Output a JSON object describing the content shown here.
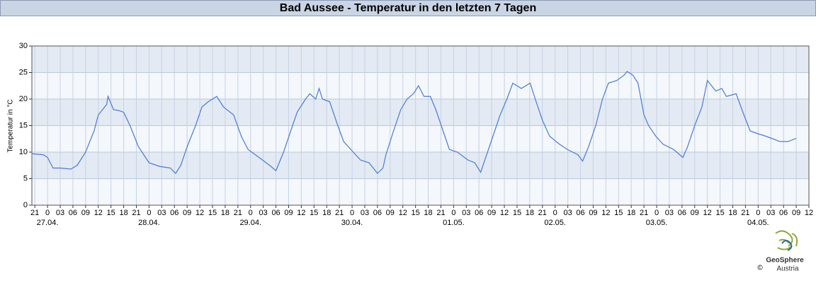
{
  "chart_data": {
    "type": "line",
    "title": "Bad Aussee - Temperatur in den letzten 7 Tagen",
    "y_label": "Temperatur in °C",
    "color": "#4a7bd6",
    "x": [
      -3.7,
      -1,
      0,
      1.3,
      3,
      5.5,
      7,
      9,
      11,
      12,
      14,
      14.3,
      15.6,
      17,
      18,
      19.5,
      21.5,
      24,
      26.5,
      29,
      30.3,
      31.5,
      33,
      35,
      36.5,
      38,
      40,
      41.6,
      44,
      45.8,
      47.4,
      50,
      52.5,
      54,
      55.8,
      57.5,
      59,
      61,
      62,
      63.4,
      64.2,
      65,
      66.7,
      68.4,
      70,
      71.7,
      74,
      76,
      78,
      79.3,
      80,
      81.8,
      83.5,
      85,
      86.5,
      87.7,
      89,
      90.5,
      91.8,
      93.5,
      95,
      96.9,
      99.4,
      101,
      102.4,
      103.6,
      105.3,
      107,
      108.6,
      110,
      112,
      114.1,
      115.3,
      117,
      118.7,
      121,
      122.9,
      125.4,
      126.5,
      127.9,
      129.6,
      131.2,
      132.6,
      134.6,
      136.3,
      137,
      138.4,
      139.6,
      141,
      142.1,
      143.8,
      145.5,
      148,
      150.2,
      151.3,
      153,
      154.7,
      156,
      158,
      159.4,
      160.5,
      162.8,
      164.4,
      166.1,
      167.8,
      169.8,
      171.5,
      173.1,
      175.1,
      177
    ],
    "values": [
      9.7,
      9.5,
      9,
      7,
      7,
      6.8,
      7.5,
      10,
      14,
      17,
      19,
      20.5,
      18,
      17.8,
      17.5,
      15,
      11,
      8,
      7.3,
      7,
      6,
      7.5,
      11,
      15,
      18.5,
      19.5,
      20.5,
      18.5,
      17,
      13,
      10.5,
      9,
      7.5,
      6.5,
      10,
      14,
      17.5,
      20,
      21,
      20,
      22,
      20,
      19.5,
      15.5,
      12,
      10.5,
      8.5,
      8,
      6,
      7,
      9.5,
      14,
      18,
      20,
      21,
      22.5,
      20.5,
      20.5,
      18,
      14,
      10.5,
      10,
      8.5,
      8,
      6.2,
      9,
      13,
      17,
      20,
      23,
      22,
      23,
      20,
      16,
      13,
      11.5,
      10.5,
      9.5,
      8.3,
      11,
      15,
      20,
      23,
      23.5,
      24.5,
      25.2,
      24.5,
      23,
      17,
      15,
      13,
      11.5,
      10.5,
      9,
      11,
      15,
      18.5,
      23.5,
      21.5,
      22,
      20.5,
      21,
      17.5,
      14,
      13.5,
      13,
      12.5,
      12,
      12,
      12.6
    ],
    "xlim": [
      -3.7,
      180
    ],
    "ylim": [
      0,
      30
    ],
    "yticks": [
      0,
      5,
      10,
      15,
      20,
      25,
      30
    ],
    "xticks": [
      {
        "value": -3,
        "label": "21"
      },
      0,
      {
        "value": 3,
        "label": "03"
      },
      {
        "value": 6,
        "label": "06"
      },
      {
        "value": 9,
        "label": "09"
      },
      12,
      15,
      18,
      21,
      {
        "value": 24,
        "label": "0"
      },
      {
        "value": 27,
        "label": "03"
      },
      {
        "value": 30,
        "label": "06"
      },
      {
        "value": 33,
        "label": "09"
      },
      {
        "value": 36,
        "label": "12"
      },
      {
        "value": 39,
        "label": "15"
      },
      {
        "value": 42,
        "label": "18"
      },
      {
        "value": 45,
        "label": "21"
      },
      {
        "value": 48,
        "label": "0"
      },
      {
        "value": 51,
        "label": "03"
      },
      {
        "value": 54,
        "label": "06"
      },
      {
        "value": 57,
        "label": "09"
      },
      {
        "value": 60,
        "label": "12"
      },
      {
        "value": 63,
        "label": "15"
      },
      {
        "value": 66,
        "label": "18"
      },
      {
        "value": 69,
        "label": "21"
      },
      {
        "value": 72,
        "label": "0"
      },
      {
        "value": 75,
        "label": "03"
      },
      {
        "value": 78,
        "label": "06"
      },
      {
        "value": 81,
        "label": "09"
      },
      {
        "value": 84,
        "label": "12"
      },
      {
        "value": 87,
        "label": "15"
      },
      {
        "value": 90,
        "label": "18"
      },
      {
        "value": 93,
        "label": "21"
      },
      {
        "value": 96,
        "label": "0"
      },
      {
        "value": 99,
        "label": "03"
      },
      {
        "value": 102,
        "label": "06"
      },
      {
        "value": 105,
        "label": "09"
      },
      {
        "value": 108,
        "label": "12"
      },
      {
        "value": 111,
        "label": "15"
      },
      {
        "value": 114,
        "label": "18"
      },
      {
        "value": 117,
        "label": "21"
      },
      {
        "value": 120,
        "label": "0"
      },
      {
        "value": 123,
        "label": "03"
      },
      {
        "value": 126,
        "label": "06"
      },
      {
        "value": 129,
        "label": "09"
      },
      {
        "value": 132,
        "label": "12"
      },
      {
        "value": 135,
        "label": "15"
      },
      {
        "value": 138,
        "label": "18"
      },
      {
        "value": 141,
        "label": "21"
      },
      {
        "value": 144,
        "label": "0"
      },
      {
        "value": 147,
        "label": "03"
      },
      {
        "value": 150,
        "label": "06"
      },
      {
        "value": 153,
        "label": "09"
      },
      {
        "value": 156,
        "label": "12"
      },
      {
        "value": 159,
        "label": "15"
      },
      {
        "value": 162,
        "label": "18"
      },
      {
        "value": 165,
        "label": "21"
      },
      {
        "value": 168,
        "label": "0"
      },
      {
        "value": 171,
        "label": "03"
      },
      {
        "value": 174,
        "label": "06"
      },
      {
        "value": 177,
        "label": "09"
      },
      {
        "value": 180,
        "label": "12"
      }
    ],
    "date_labels": [
      {
        "value": 0,
        "label": "27.04."
      },
      {
        "value": 24,
        "label": "28.04."
      },
      {
        "value": 48,
        "label": "29.04."
      },
      {
        "value": 72,
        "label": "30.04."
      },
      {
        "value": 96,
        "label": "01.05."
      },
      {
        "value": 120,
        "label": "02.05."
      },
      {
        "value": 144,
        "label": "03.05."
      },
      {
        "value": 168,
        "label": "04.05."
      }
    ],
    "grid": true,
    "source_lines": [
      "GeoSphere",
      "Austria"
    ],
    "copyright": "©"
  }
}
